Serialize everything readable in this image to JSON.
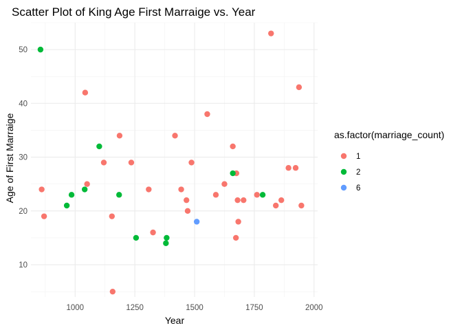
{
  "chart_data": {
    "type": "scatter",
    "title": "Scatter Plot of King Age First Marraige vs. Year",
    "xlabel": "Year",
    "ylabel": "Age of First Marraige",
    "xlim": [
      815,
      2015
    ],
    "ylim": [
      4,
      55
    ],
    "x_ticks": [
      1000,
      1250,
      1500,
      1750,
      2000
    ],
    "y_ticks": [
      10,
      20,
      30,
      40,
      50
    ],
    "grid": true,
    "legend": {
      "title": "as.factor(marriage_count)",
      "position": "right",
      "entries": [
        {
          "label": "1",
          "color": "#F8766D"
        },
        {
          "label": "2",
          "color": "#00BA38"
        },
        {
          "label": "6",
          "color": "#619CFF"
        }
      ]
    },
    "series": [
      {
        "name": "1",
        "color": "#F8766D",
        "points": [
          {
            "x": 860,
            "y": 24
          },
          {
            "x": 870,
            "y": 19
          },
          {
            "x": 1042,
            "y": 42
          },
          {
            "x": 1050,
            "y": 25
          },
          {
            "x": 1120,
            "y": 29
          },
          {
            "x": 1154,
            "y": 19
          },
          {
            "x": 1157,
            "y": 5
          },
          {
            "x": 1186,
            "y": 34
          },
          {
            "x": 1235,
            "y": 29
          },
          {
            "x": 1308,
            "y": 24
          },
          {
            "x": 1326,
            "y": 16
          },
          {
            "x": 1418,
            "y": 34
          },
          {
            "x": 1444,
            "y": 24
          },
          {
            "x": 1466,
            "y": 22
          },
          {
            "x": 1471,
            "y": 20
          },
          {
            "x": 1487,
            "y": 29
          },
          {
            "x": 1553,
            "y": 38
          },
          {
            "x": 1589,
            "y": 23
          },
          {
            "x": 1625,
            "y": 25
          },
          {
            "x": 1660,
            "y": 32
          },
          {
            "x": 1673,
            "y": 15
          },
          {
            "x": 1675,
            "y": 27
          },
          {
            "x": 1680,
            "y": 22
          },
          {
            "x": 1683,
            "y": 18
          },
          {
            "x": 1705,
            "y": 22
          },
          {
            "x": 1761,
            "y": 23
          },
          {
            "x": 1820,
            "y": 53
          },
          {
            "x": 1840,
            "y": 21
          },
          {
            "x": 1863,
            "y": 22
          },
          {
            "x": 1893,
            "y": 28
          },
          {
            "x": 1923,
            "y": 28
          },
          {
            "x": 1937,
            "y": 43
          },
          {
            "x": 1947,
            "y": 21
          }
        ]
      },
      {
        "name": "2",
        "color": "#00BA38",
        "points": [
          {
            "x": 855,
            "y": 50
          },
          {
            "x": 965,
            "y": 21
          },
          {
            "x": 985,
            "y": 23
          },
          {
            "x": 1040,
            "y": 24
          },
          {
            "x": 1101,
            "y": 32
          },
          {
            "x": 1184,
            "y": 23
          },
          {
            "x": 1255,
            "y": 15
          },
          {
            "x": 1380,
            "y": 14
          },
          {
            "x": 1383,
            "y": 15
          },
          {
            "x": 1660,
            "y": 27
          },
          {
            "x": 1785,
            "y": 23
          }
        ]
      },
      {
        "name": "6",
        "color": "#619CFF",
        "points": [
          {
            "x": 1509,
            "y": 18
          }
        ]
      }
    ]
  }
}
